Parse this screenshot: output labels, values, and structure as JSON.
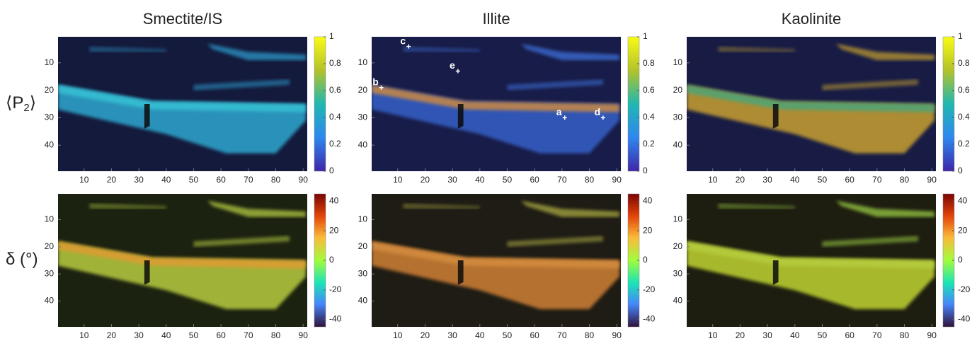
{
  "columns": [
    {
      "title": "Smectite/IS"
    },
    {
      "title": "Illite"
    },
    {
      "title": "Kaolinite"
    }
  ],
  "rows": [
    {
      "label": {
        "prefix": "⟨P",
        "sub": "2",
        "suffix": "⟩"
      },
      "clim": [
        0,
        1
      ],
      "cticks": [
        0,
        0.2,
        0.4,
        0.6,
        0.8,
        1
      ]
    },
    {
      "label": {
        "prefix": "δ (°)"
      },
      "clim": [
        -45,
        45
      ],
      "cticks": [
        -40,
        -20,
        0,
        20,
        40
      ]
    }
  ],
  "axes": {
    "xlim": [
      0.5,
      91.5
    ],
    "xticks": [
      10,
      20,
      30,
      40,
      50,
      60,
      70,
      80,
      90
    ],
    "ylim": [
      0.5,
      49.5
    ],
    "yticks": [
      10,
      20,
      30,
      40
    ]
  },
  "annotations": [
    {
      "label": "a",
      "x": 71,
      "y": 30
    },
    {
      "label": "b",
      "x": 4,
      "y": 19
    },
    {
      "label": "c",
      "x": 14,
      "y": 4
    },
    {
      "label": "d",
      "x": 85,
      "y": 30
    },
    {
      "label": "e",
      "x": 32,
      "y": 13
    }
  ]
}
